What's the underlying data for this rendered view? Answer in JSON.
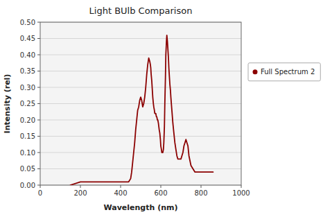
{
  "chart_data": {
    "type": "line",
    "title": "Light BUlb Comparison",
    "xlabel": "Wavelength (nm)",
    "ylabel": "Intensity (rel)",
    "x": [
      150,
      200,
      220,
      250,
      300,
      350,
      380,
      390,
      400,
      410,
      420,
      430,
      440,
      450,
      455,
      460,
      465,
      470,
      475,
      480,
      485,
      490,
      495,
      500,
      505,
      510,
      515,
      520,
      525,
      530,
      535,
      540,
      545,
      548,
      550,
      552,
      555,
      558,
      560,
      563,
      565,
      568,
      570,
      572,
      575,
      578,
      580,
      583,
      585,
      588,
      590,
      592,
      595,
      598,
      600,
      603,
      605,
      608,
      610,
      613,
      615,
      618,
      620,
      623,
      625,
      628,
      630,
      633,
      635,
      638,
      640,
      643,
      645,
      648,
      650,
      655,
      660,
      665,
      670,
      675,
      680,
      685,
      690,
      695,
      700,
      705,
      710,
      715,
      720,
      725,
      730,
      735,
      740,
      750,
      760,
      770,
      780,
      790,
      800,
      810,
      820,
      830,
      840,
      850,
      860
    ],
    "series": [
      {
        "name": "Full Spectrum 2",
        "color": "#8B0000",
        "values": [
          0.0,
          0.01,
          0.01,
          0.01,
          0.01,
          0.01,
          0.01,
          0.01,
          0.01,
          0.01,
          0.01,
          0.01,
          0.01,
          0.02,
          0.04,
          0.07,
          0.1,
          0.13,
          0.17,
          0.2,
          0.23,
          0.24,
          0.26,
          0.27,
          0.26,
          0.24,
          0.25,
          0.27,
          0.3,
          0.34,
          0.37,
          0.39,
          0.38,
          0.37,
          0.36,
          0.34,
          0.32,
          0.29,
          0.27,
          0.25,
          0.24,
          0.23,
          0.22,
          0.22,
          0.22,
          0.21,
          0.21,
          0.2,
          0.2,
          0.19,
          0.18,
          0.17,
          0.16,
          0.14,
          0.12,
          0.11,
          0.1,
          0.1,
          0.1,
          0.11,
          0.13,
          0.18,
          0.25,
          0.33,
          0.4,
          0.44,
          0.46,
          0.44,
          0.42,
          0.39,
          0.36,
          0.33,
          0.31,
          0.29,
          0.27,
          0.23,
          0.19,
          0.16,
          0.13,
          0.11,
          0.09,
          0.08,
          0.08,
          0.08,
          0.08,
          0.09,
          0.1,
          0.12,
          0.13,
          0.14,
          0.13,
          0.12,
          0.09,
          0.06,
          0.05,
          0.04,
          0.04,
          0.04,
          0.04,
          0.04,
          0.04,
          0.04,
          0.04,
          0.04,
          0.04
        ]
      }
    ],
    "xlim": [
      0,
      1000
    ],
    "ylim": [
      0,
      0.5
    ],
    "xticks": [
      0,
      200,
      400,
      600,
      800,
      1000
    ],
    "yticks": [
      {
        "value": 0,
        "label": "0.00"
      },
      0.05,
      {
        "value": 0.1,
        "label": "0.10"
      },
      0.15,
      {
        "value": 0.2,
        "label": "0.20"
      },
      0.25,
      {
        "value": 0.3,
        "label": "0.30"
      },
      0.35,
      {
        "value": 0.4,
        "label": "0.40"
      },
      0.45,
      {
        "value": 0.5,
        "label": "0.50"
      }
    ],
    "grid": true,
    "legend": "right"
  }
}
